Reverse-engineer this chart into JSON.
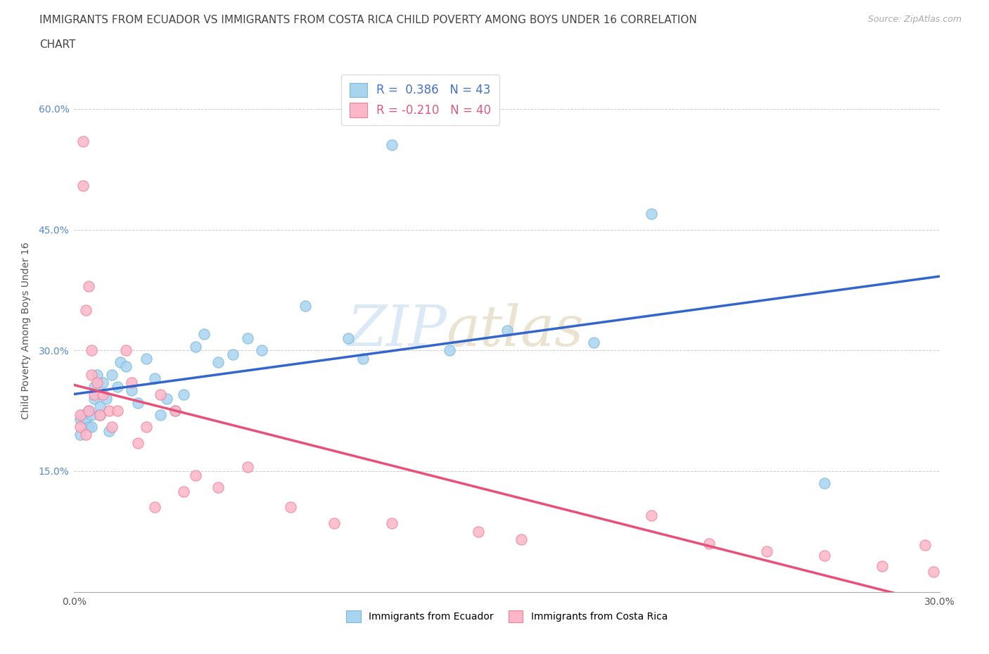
{
  "title_line1": "IMMIGRANTS FROM ECUADOR VS IMMIGRANTS FROM COSTA RICA CHILD POVERTY AMONG BOYS UNDER 16 CORRELATION",
  "title_line2": "CHART",
  "source_text": "Source: ZipAtlas.com",
  "ylabel": "Child Poverty Among Boys Under 16",
  "xlim": [
    0.0,
    0.3
  ],
  "ylim": [
    0.0,
    0.65
  ],
  "ecuador_color": "#a8d4f0",
  "ecuador_edge_color": "#7ab8dc",
  "costa_rica_color": "#ffb6c8",
  "costa_rica_edge_color": "#f08098",
  "ecuador_line_color": "#3366cc",
  "costa_rica_line_color": "#e8507a",
  "ecuador_R": 0.386,
  "ecuador_N": 43,
  "costa_rica_R": -0.21,
  "costa_rica_N": 40,
  "watermark_zip": "ZIP",
  "watermark_atlas": "atlas",
  "background_color": "#ffffff",
  "ecuador_x": [
    0.002,
    0.002,
    0.003,
    0.004,
    0.005,
    0.005,
    0.006,
    0.006,
    0.007,
    0.007,
    0.008,
    0.009,
    0.009,
    0.01,
    0.011,
    0.012,
    0.013,
    0.015,
    0.016,
    0.018,
    0.02,
    0.022,
    0.025,
    0.028,
    0.03,
    0.032,
    0.035,
    0.038,
    0.042,
    0.045,
    0.05,
    0.055,
    0.06,
    0.065,
    0.08,
    0.095,
    0.1,
    0.11,
    0.13,
    0.15,
    0.18,
    0.2,
    0.26
  ],
  "ecuador_y": [
    0.195,
    0.215,
    0.22,
    0.215,
    0.205,
    0.225,
    0.205,
    0.22,
    0.24,
    0.255,
    0.27,
    0.22,
    0.23,
    0.26,
    0.24,
    0.2,
    0.27,
    0.255,
    0.285,
    0.28,
    0.25,
    0.235,
    0.29,
    0.265,
    0.22,
    0.24,
    0.225,
    0.245,
    0.305,
    0.32,
    0.285,
    0.295,
    0.315,
    0.3,
    0.355,
    0.315,
    0.29,
    0.555,
    0.3,
    0.325,
    0.31,
    0.47,
    0.135
  ],
  "costa_rica_x": [
    0.002,
    0.002,
    0.003,
    0.003,
    0.004,
    0.004,
    0.005,
    0.005,
    0.006,
    0.006,
    0.007,
    0.008,
    0.009,
    0.01,
    0.012,
    0.013,
    0.015,
    0.018,
    0.02,
    0.022,
    0.025,
    0.028,
    0.03,
    0.035,
    0.038,
    0.042,
    0.05,
    0.06,
    0.075,
    0.09,
    0.11,
    0.14,
    0.155,
    0.2,
    0.22,
    0.24,
    0.26,
    0.28,
    0.295,
    0.298
  ],
  "costa_rica_y": [
    0.205,
    0.22,
    0.56,
    0.505,
    0.195,
    0.35,
    0.38,
    0.225,
    0.3,
    0.27,
    0.245,
    0.26,
    0.22,
    0.245,
    0.225,
    0.205,
    0.225,
    0.3,
    0.26,
    0.185,
    0.205,
    0.105,
    0.245,
    0.225,
    0.125,
    0.145,
    0.13,
    0.155,
    0.105,
    0.085,
    0.085,
    0.075,
    0.065,
    0.095,
    0.06,
    0.05,
    0.045,
    0.032,
    0.058,
    0.025
  ]
}
